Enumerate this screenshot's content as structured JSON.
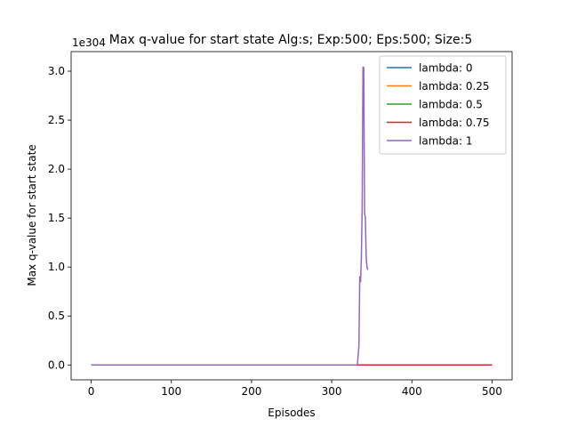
{
  "chart_data": {
    "type": "line",
    "title": "Max q-value for start state Alg:s; Exp:500; Eps:500; Size:5",
    "xlabel": "Episodes",
    "ylabel": "Max q-value for start state",
    "offset_text": "1e304",
    "xlim": [
      -25,
      525
    ],
    "ylim": [
      -0.152,
      3.2
    ],
    "xticks": [
      0,
      100,
      200,
      300,
      400,
      500
    ],
    "yticks": [
      0.0,
      0.5,
      1.0,
      1.5,
      2.0,
      2.5,
      3.0
    ],
    "xtick_labels": [
      "0",
      "100",
      "200",
      "300",
      "400",
      "500"
    ],
    "ytick_labels": [
      "0.0",
      "0.5",
      "1.0",
      "1.5",
      "2.0",
      "2.5",
      "3.0"
    ],
    "legend_position": "top-right",
    "grid": false,
    "series": [
      {
        "name": "lambda: 0",
        "color": "#1f77b4",
        "x": [
          0,
          500
        ],
        "y": [
          0,
          0
        ]
      },
      {
        "name": "lambda: 0.25",
        "color": "#ff7f0e",
        "x": [
          0,
          500
        ],
        "y": [
          0,
          0
        ]
      },
      {
        "name": "lambda: 0.5",
        "color": "#2ca02c",
        "x": [
          0,
          500
        ],
        "y": [
          0,
          0
        ]
      },
      {
        "name": "lambda: 0.75",
        "color": "#d62728",
        "x": [
          0,
          500
        ],
        "y": [
          0,
          0
        ]
      },
      {
        "name": "lambda: 1",
        "color": "#9467bd",
        "x": [
          0,
          332,
          334,
          335,
          336,
          337,
          338,
          339,
          340,
          341,
          342,
          343,
          344,
          345
        ],
        "y": [
          0,
          0,
          0.2,
          0.9,
          0.85,
          1.1,
          1.6,
          3.04,
          3.04,
          1.55,
          1.5,
          1.1,
          1.0,
          0.97
        ]
      }
    ]
  }
}
